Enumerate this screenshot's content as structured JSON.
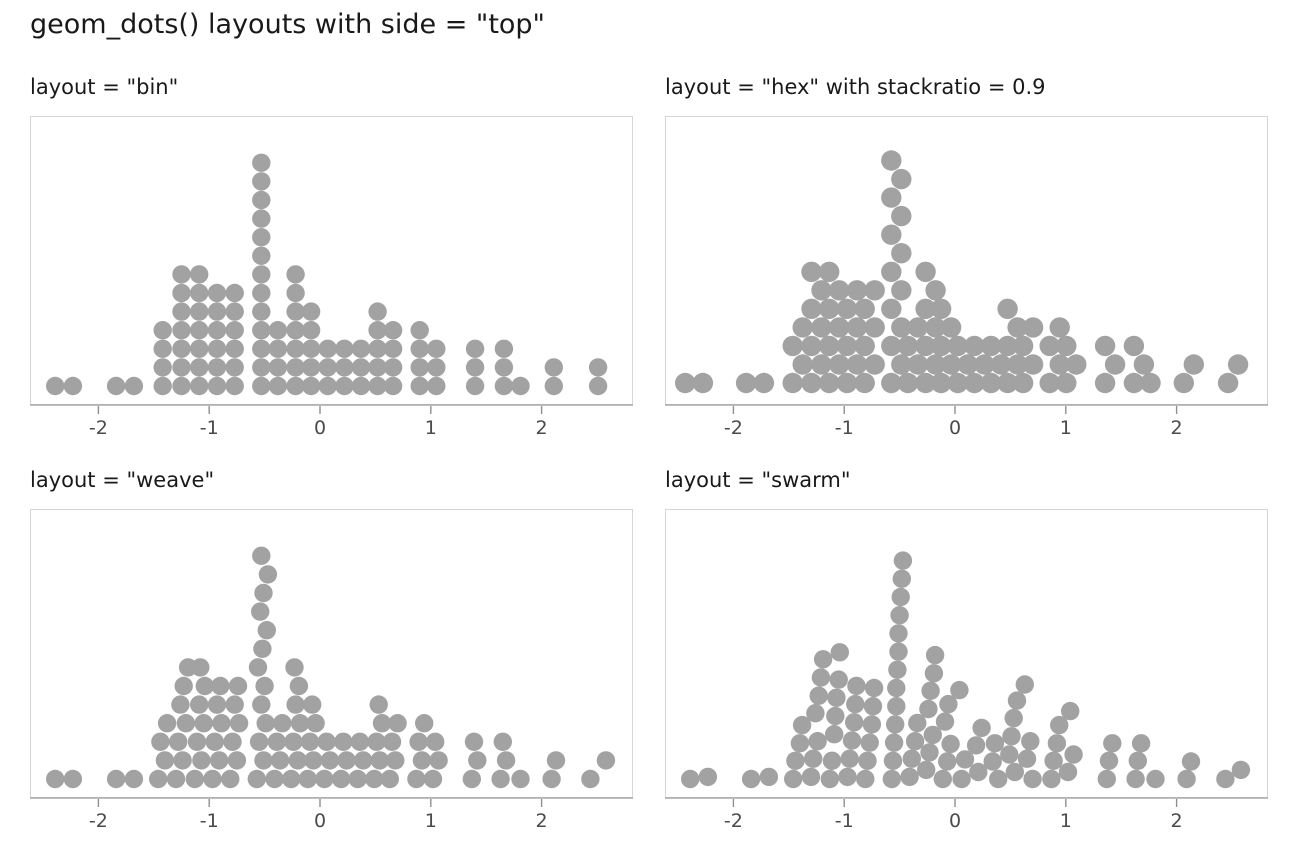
{
  "header": {
    "title": "geom_dots() layouts with side = \"top\""
  },
  "panels": [
    {
      "id": "bin",
      "label": "layout = \"bin\"",
      "layout": "bin"
    },
    {
      "id": "hex",
      "label": "layout = \"hex\" with stackratio = 0.9",
      "layout": "hex",
      "stackratio": 0.9
    },
    {
      "id": "weave",
      "label": "layout = \"weave\"",
      "layout": "weave"
    },
    {
      "id": "swarm",
      "label": "layout = \"swarm\"",
      "layout": "swarm"
    }
  ],
  "colors": {
    "dot": "#a2a2a2",
    "panel_border": "#d6d6d6",
    "axis_line": "#9b9b9b",
    "tick": "#8f8f8f",
    "tick_label": "#4b4b4b",
    "title": "#191919",
    "background": "#ffffff"
  },
  "chart_data": {
    "type": "scatter",
    "subtype": "dotplot-small-multiples",
    "title": "geom_dots() layouts with side = \"top\"",
    "xlabel": "",
    "ylabel": "",
    "n_points": 99,
    "x_ticks": [
      -2,
      -1,
      0,
      1,
      2
    ],
    "x_tick_labels": [
      "-2",
      "-1",
      "0",
      "1",
      "2"
    ],
    "x_axis_range": [
      -2.62,
      2.82
    ],
    "binwidth": 0.157,
    "layouts_shown": [
      "bin",
      "hex",
      "weave",
      "swarm"
    ],
    "hex_stackratio": 0.9,
    "grid": "off",
    "legend": "none",
    "stacks": [
      {
        "x": -2.39,
        "count": 1,
        "values": [
          -2.39
        ]
      },
      {
        "x": -2.23,
        "count": 1,
        "values": [
          -2.23
        ]
      },
      {
        "x": -1.84,
        "count": 1,
        "values": [
          -1.84
        ]
      },
      {
        "x": -1.68,
        "count": 1,
        "values": [
          -1.68
        ]
      },
      {
        "x": -1.42,
        "count": 4,
        "values": [
          -1.46,
          -1.4,
          -1.44,
          -1.38
        ]
      },
      {
        "x": -1.25,
        "count": 7,
        "values": [
          -1.3,
          -1.24,
          -1.28,
          -1.21,
          -1.26,
          -1.23,
          -1.19
        ]
      },
      {
        "x": -1.09,
        "count": 7,
        "values": [
          -1.13,
          -1.07,
          -1.11,
          -1.05,
          -1.09,
          -1.04,
          -1.08
        ]
      },
      {
        "x": -0.93,
        "count": 6,
        "values": [
          -0.97,
          -0.91,
          -0.95,
          -0.89,
          -0.93,
          -0.9
        ]
      },
      {
        "x": -0.77,
        "count": 6,
        "values": [
          -0.81,
          -0.75,
          -0.79,
          -0.73,
          -0.77,
          -0.74
        ]
      },
      {
        "x": -0.53,
        "count": 13,
        "values": [
          -0.57,
          -0.51,
          -0.55,
          -0.49,
          -0.53,
          -0.5,
          -0.56,
          -0.52,
          -0.48,
          -0.54,
          -0.51,
          -0.47,
          -0.53
        ]
      },
      {
        "x": -0.38,
        "count": 4,
        "values": [
          -0.41,
          -0.36,
          -0.39,
          -0.34
        ]
      },
      {
        "x": -0.22,
        "count": 7,
        "values": [
          -0.26,
          -0.2,
          -0.24,
          -0.18,
          -0.22,
          -0.19,
          -0.23
        ]
      },
      {
        "x": -0.08,
        "count": 5,
        "values": [
          -0.11,
          -0.06,
          -0.09,
          -0.04,
          -0.07
        ]
      },
      {
        "x": 0.07,
        "count": 3,
        "values": [
          0.04,
          0.09,
          0.06
        ]
      },
      {
        "x": 0.22,
        "count": 3,
        "values": [
          0.19,
          0.24,
          0.21
        ]
      },
      {
        "x": 0.37,
        "count": 3,
        "values": [
          0.34,
          0.39,
          0.36
        ]
      },
      {
        "x": 0.52,
        "count": 5,
        "values": [
          0.49,
          0.54,
          0.51,
          0.56,
          0.53
        ]
      },
      {
        "x": 0.66,
        "count": 4,
        "values": [
          0.63,
          0.68,
          0.65,
          0.7
        ]
      },
      {
        "x": 0.9,
        "count": 4,
        "values": [
          0.87,
          0.92,
          0.89,
          0.94
        ]
      },
      {
        "x": 1.05,
        "count": 3,
        "values": [
          1.02,
          1.07,
          1.04
        ]
      },
      {
        "x": 1.4,
        "count": 3,
        "values": [
          1.37,
          1.42,
          1.39
        ]
      },
      {
        "x": 1.66,
        "count": 3,
        "values": [
          1.63,
          1.68,
          1.65
        ]
      },
      {
        "x": 1.81,
        "count": 1,
        "values": [
          1.81
        ]
      },
      {
        "x": 2.11,
        "count": 2,
        "values": [
          2.09,
          2.13
        ]
      },
      {
        "x": 2.51,
        "count": 2,
        "values": [
          2.44,
          2.58
        ]
      }
    ]
  }
}
